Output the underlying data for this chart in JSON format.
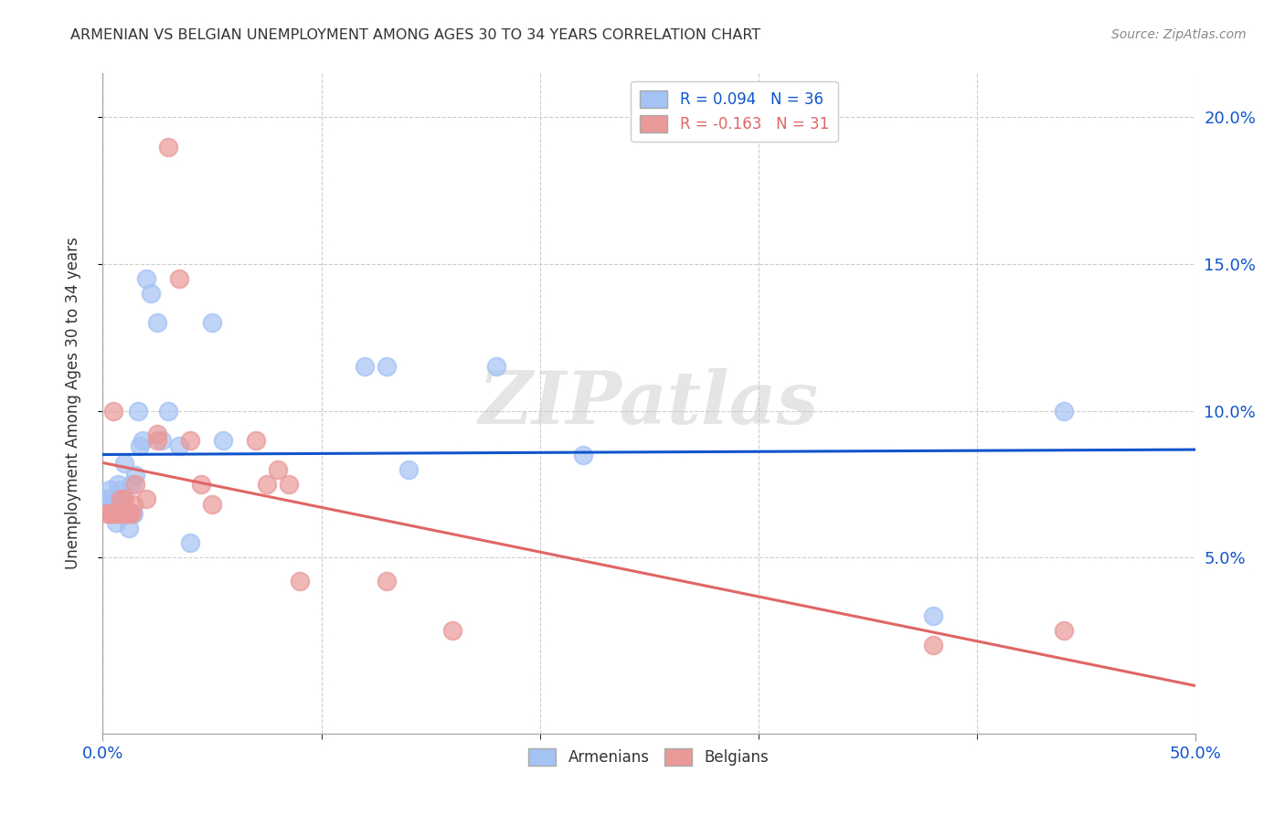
{
  "title": "ARMENIAN VS BELGIAN UNEMPLOYMENT AMONG AGES 30 TO 34 YEARS CORRELATION CHART",
  "source": "Source: ZipAtlas.com",
  "xlabel": "",
  "ylabel": "Unemployment Among Ages 30 to 34 years",
  "xlim": [
    0,
    0.5
  ],
  "ylim": [
    -0.01,
    0.215
  ],
  "xtick_positions": [
    0.0,
    0.5
  ],
  "xticklabels": [
    "0.0%",
    "50.0%"
  ],
  "yticks_right": [
    0.05,
    0.1,
    0.15,
    0.2
  ],
  "yticklabels_right": [
    "5.0%",
    "10.0%",
    "15.0%",
    "20.0%"
  ],
  "armenian_color": "#a4c2f4",
  "belgian_color": "#ea9999",
  "armenian_line_color": "#1155cc",
  "belgian_line_color": "#e06666",
  "armenian_R": 0.094,
  "armenian_N": 36,
  "belgian_R": -0.163,
  "belgian_N": 31,
  "background_color": "#ffffff",
  "watermark": "ZIPatlas",
  "armenians_x": [
    0.002,
    0.003,
    0.004,
    0.004,
    0.005,
    0.006,
    0.006,
    0.007,
    0.007,
    0.008,
    0.009,
    0.01,
    0.011,
    0.012,
    0.013,
    0.014,
    0.015,
    0.016,
    0.017,
    0.018,
    0.02,
    0.022,
    0.025,
    0.027,
    0.03,
    0.035,
    0.04,
    0.05,
    0.055,
    0.12,
    0.13,
    0.14,
    0.18,
    0.22,
    0.38,
    0.44
  ],
  "armenians_y": [
    0.07,
    0.073,
    0.07,
    0.065,
    0.068,
    0.065,
    0.062,
    0.075,
    0.068,
    0.073,
    0.07,
    0.082,
    0.065,
    0.06,
    0.075,
    0.065,
    0.078,
    0.1,
    0.088,
    0.09,
    0.145,
    0.14,
    0.13,
    0.09,
    0.1,
    0.088,
    0.055,
    0.13,
    0.09,
    0.115,
    0.115,
    0.08,
    0.115,
    0.085,
    0.03,
    0.1
  ],
  "belgians_x": [
    0.002,
    0.003,
    0.004,
    0.005,
    0.006,
    0.007,
    0.008,
    0.009,
    0.01,
    0.011,
    0.012,
    0.013,
    0.014,
    0.015,
    0.02,
    0.025,
    0.025,
    0.03,
    0.035,
    0.04,
    0.045,
    0.05,
    0.07,
    0.075,
    0.08,
    0.085,
    0.09,
    0.13,
    0.16,
    0.38,
    0.44
  ],
  "belgians_y": [
    0.065,
    0.065,
    0.065,
    0.1,
    0.065,
    0.065,
    0.07,
    0.065,
    0.07,
    0.065,
    0.065,
    0.065,
    0.068,
    0.075,
    0.07,
    0.092,
    0.09,
    0.19,
    0.145,
    0.09,
    0.075,
    0.068,
    0.09,
    0.075,
    0.08,
    0.075,
    0.042,
    0.042,
    0.025,
    0.02,
    0.025
  ],
  "grid_yticks": [
    0.05,
    0.1,
    0.15,
    0.2
  ],
  "grid_xticks": [
    0.0,
    0.1,
    0.2,
    0.3,
    0.4,
    0.5
  ]
}
